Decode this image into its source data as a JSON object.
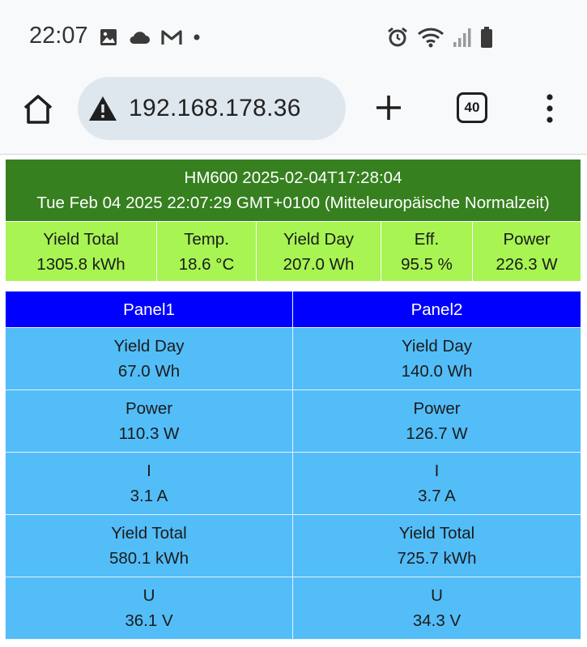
{
  "status_bar": {
    "time": "22:07",
    "left_icons": [
      "image-icon",
      "cloud-icon",
      "gmail-icon",
      "dot-icon"
    ],
    "right_icons": [
      "alarm-icon",
      "wifi-icon",
      "signal-icon",
      "battery-icon"
    ]
  },
  "browser": {
    "url": "192.168.178.36",
    "tab_count": "40",
    "icons": [
      "home-icon",
      "warning-icon",
      "plus-icon",
      "tabs-icon",
      "more-vert-icon"
    ]
  },
  "inverter": {
    "title": "HM600 2025-02-04T17:28:04",
    "datetime": "Tue Feb 04 2025 22:07:29 GMT+0100 (Mitteleuropäische Normalzeit)",
    "metrics": [
      {
        "label": "Yield Total",
        "value": "1305.8 kWh"
      },
      {
        "label": "Temp.",
        "value": "18.6 °C"
      },
      {
        "label": "Yield Day",
        "value": "207.0 Wh"
      },
      {
        "label": "Eff.",
        "value": "95.5 %"
      },
      {
        "label": "Power",
        "value": "226.3 W"
      }
    ],
    "colors": {
      "header": "#36801f",
      "metrics": "#a7f453"
    }
  },
  "panels": {
    "headers": [
      "Panel1",
      "Panel2"
    ],
    "rows": [
      {
        "label": "Yield Day",
        "values": [
          "67.0 Wh",
          "140.0 Wh"
        ]
      },
      {
        "label": "Power",
        "values": [
          "110.3 W",
          "126.7 W"
        ]
      },
      {
        "label": "I",
        "values": [
          "3.1 A",
          "3.7 A"
        ]
      },
      {
        "label": "Yield Total",
        "values": [
          "580.1 kWh",
          "725.7 kWh"
        ]
      },
      {
        "label": "U",
        "values": [
          "36.1 V",
          "34.3 V"
        ]
      }
    ],
    "colors": {
      "header": "#0000ff",
      "cells": "#53bdf8"
    }
  }
}
